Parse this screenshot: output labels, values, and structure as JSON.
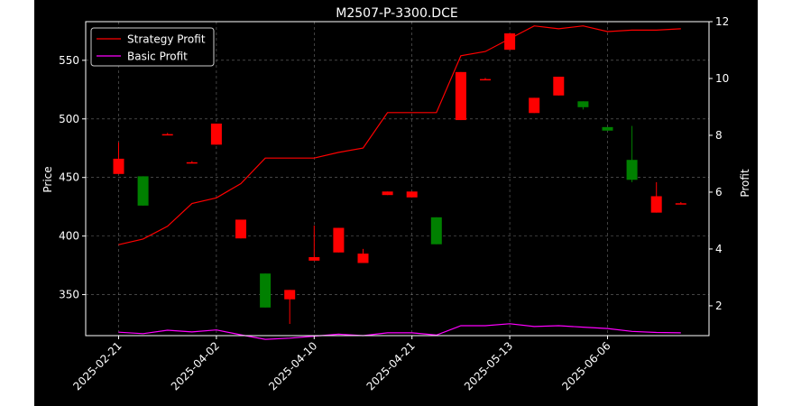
{
  "chart_data": {
    "type": "candlestick+line",
    "title": "M2507-P-3300.DCE",
    "xlabel": "",
    "ylabel_left": "Price",
    "ylabel_right": "Profit",
    "ylim_left": [
      315,
      583
    ],
    "ylim_right": [
      0.95,
      12.0
    ],
    "yticks_left": [
      350,
      400,
      450,
      500,
      550
    ],
    "yticks_right": [
      2,
      4,
      6,
      8,
      10,
      12
    ],
    "grid": true,
    "legend_position": "top-left",
    "background_color": "#000000",
    "candles": [
      {
        "open": 453,
        "close": 466,
        "high": 480,
        "low": 453
      },
      {
        "open": 451,
        "close": 426,
        "high": 451,
        "low": 426
      },
      {
        "open": 487,
        "close": 487,
        "high": 488,
        "low": 486
      },
      {
        "open": 463,
        "close": 463,
        "high": 464,
        "low": 462
      },
      {
        "open": 478,
        "close": 496,
        "high": 496,
        "low": 478
      },
      {
        "open": 398,
        "close": 414,
        "high": 414,
        "low": 398
      },
      {
        "open": 368,
        "close": 339,
        "high": 368,
        "low": 339
      },
      {
        "open": 346,
        "close": 354,
        "high": 354,
        "low": 325
      },
      {
        "open": 379,
        "close": 382,
        "high": 409,
        "low": 379
      },
      {
        "open": 386,
        "close": 407,
        "high": 407,
        "low": 386
      },
      {
        "open": 377,
        "close": 385,
        "high": 389,
        "low": 377
      },
      {
        "open": 435,
        "close": 438,
        "high": 438,
        "low": 435
      },
      {
        "open": 433,
        "close": 438,
        "high": 438,
        "low": 433
      },
      {
        "open": 416,
        "close": 393,
        "high": 416,
        "low": 393
      },
      {
        "open": 499,
        "close": 540,
        "high": 540,
        "low": 499
      },
      {
        "open": 534,
        "close": 534,
        "high": 535,
        "low": 533
      },
      {
        "open": 559,
        "close": 573,
        "high": 573,
        "low": 559
      },
      {
        "open": 505,
        "close": 518,
        "high": 518,
        "low": 505
      },
      {
        "open": 520,
        "close": 536,
        "high": 536,
        "low": 520
      },
      {
        "open": 515,
        "close": 510,
        "high": 515,
        "low": 508
      },
      {
        "open": 493,
        "close": 490,
        "high": 493,
        "low": 490
      },
      {
        "open": 465,
        "close": 448,
        "high": 494,
        "low": 446
      },
      {
        "open": 420,
        "close": 434,
        "high": 446,
        "low": 420
      },
      {
        "open": 428,
        "close": 428,
        "high": 429,
        "low": 427
      }
    ],
    "series": [
      {
        "name": "Strategy Profit",
        "color": "#ff0000",
        "axis": "right",
        "values": [
          4.15,
          4.35,
          4.8,
          5.6,
          5.8,
          6.3,
          7.2,
          7.2,
          7.2,
          7.4,
          7.55,
          8.8,
          8.8,
          8.8,
          10.8,
          10.95,
          11.4,
          11.85,
          11.75,
          11.85,
          11.65,
          11.7,
          11.7,
          11.75
        ]
      },
      {
        "name": "Basic Profit",
        "color": "#ff00ff",
        "axis": "right",
        "values": [
          1.07,
          1.02,
          1.14,
          1.08,
          1.15,
          0.98,
          0.82,
          0.86,
          0.93,
          1.0,
          0.95,
          1.05,
          1.05,
          0.97,
          1.3,
          1.3,
          1.37,
          1.27,
          1.3,
          1.25,
          1.2,
          1.1,
          1.06,
          1.05
        ]
      }
    ],
    "xtick_labels": [
      {
        "label": "2025-02-21",
        "index": 0
      },
      {
        "label": "2025-04-02",
        "index": 4
      },
      {
        "label": "2025-04-10",
        "index": 8
      },
      {
        "label": "2025-04-21",
        "index": 12
      },
      {
        "label": "2025-05-13",
        "index": 16
      },
      {
        "label": "2025-06-06",
        "index": 20
      }
    ]
  }
}
